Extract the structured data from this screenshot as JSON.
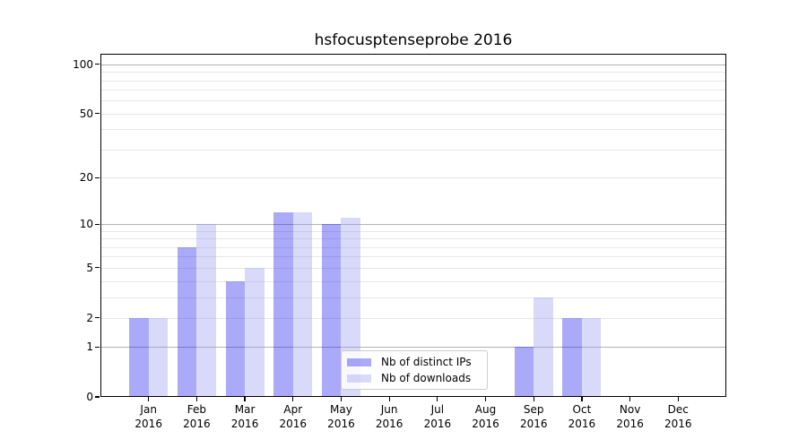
{
  "title": "hsfocusptenseprobe 2016",
  "colors": {
    "background": "#ffffff",
    "axis": "#000000",
    "grid_major": "#b2b2b2",
    "grid_minor": "#e7e7e7",
    "bar_ips": "rgba(11,11,234,0.35)",
    "bar_downloads": "rgba(145,145,242,0.35)",
    "legend_border": "#cccccc"
  },
  "chart_data": {
    "type": "bar",
    "title": "hsfocusptenseprobe 2016",
    "categories": [
      "Jan",
      "Feb",
      "Mar",
      "Apr",
      "May",
      "Jun",
      "Jul",
      "Aug",
      "Sep",
      "Oct",
      "Nov",
      "Dec"
    ],
    "year": "2016",
    "series": [
      {
        "name": "Nb of distinct IPs",
        "color": "rgba(11,11,234,0.35)",
        "values": [
          2,
          7,
          4,
          12,
          10,
          0,
          0,
          0,
          1,
          2,
          0,
          0
        ]
      },
      {
        "name": "Nb of downloads",
        "color": "rgba(145,145,242,0.35)",
        "values": [
          2,
          10,
          5,
          12,
          11,
          0,
          0,
          0,
          3,
          2,
          0,
          0
        ]
      }
    ],
    "yscale": "log1p",
    "ylim": [
      0,
      116
    ],
    "yticks": [
      0,
      1,
      2,
      5,
      10,
      20,
      50,
      100
    ],
    "gridlines_major": [
      1,
      10,
      100
    ],
    "gridlines_minor": [
      2,
      3,
      4,
      5,
      6,
      7,
      8,
      9,
      20,
      30,
      40,
      50,
      60,
      70,
      80,
      90
    ],
    "grid": true,
    "legend_position": "lower center"
  }
}
